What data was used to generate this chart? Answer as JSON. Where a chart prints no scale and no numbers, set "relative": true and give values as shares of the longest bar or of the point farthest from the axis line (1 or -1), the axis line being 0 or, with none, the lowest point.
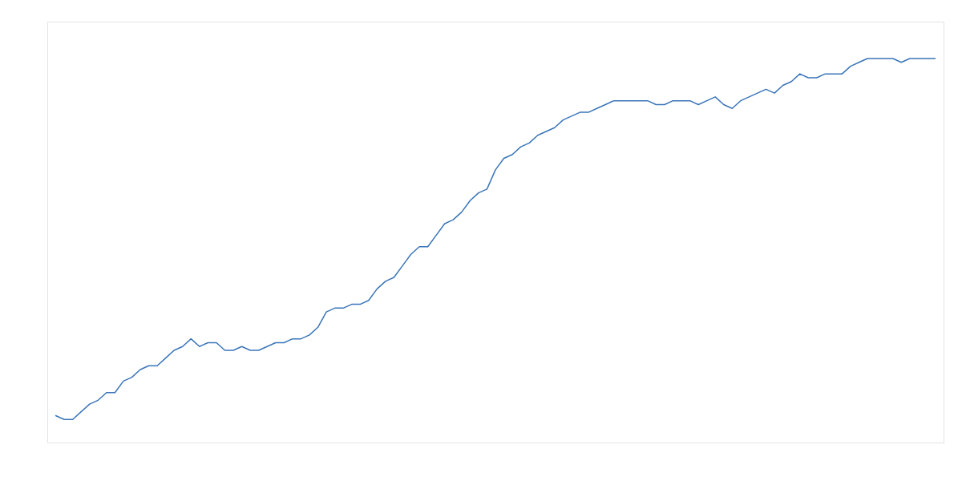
{
  "chart_data": {
    "type": "line",
    "relative": true,
    "color": "#3a75b8",
    "categories": [
      null,
      null,
      null,
      null,
      null,
      null,
      null,
      null,
      null,
      null,
      null,
      null,
      null,
      null,
      null,
      null,
      null,
      null,
      null,
      null,
      null,
      null,
      null,
      null,
      null,
      null,
      null,
      null,
      null,
      null,
      null,
      null,
      null,
      null,
      null,
      null,
      null,
      null,
      null,
      null,
      null,
      null,
      null,
      null,
      null,
      null,
      null,
      null,
      null,
      null,
      null,
      null,
      null,
      null,
      null,
      null,
      null,
      null,
      null,
      null,
      null,
      null,
      null,
      null,
      null,
      null,
      null,
      null,
      null,
      null,
      null,
      null,
      null,
      null,
      null,
      null,
      null,
      null,
      null,
      null,
      null,
      null,
      null,
      null,
      null,
      null,
      null,
      null,
      null,
      null,
      null,
      null,
      null,
      null,
      null,
      null,
      null,
      null,
      null,
      null,
      null,
      null,
      null,
      null,
      null
    ],
    "values": [
      0.07,
      0.06,
      0.06,
      0.08,
      0.1,
      0.11,
      0.13,
      0.13,
      0.16,
      0.17,
      0.19,
      0.2,
      0.2,
      0.22,
      0.24,
      0.25,
      0.27,
      0.25,
      0.26,
      0.26,
      0.24,
      0.24,
      0.25,
      0.24,
      0.24,
      0.25,
      0.26,
      0.26,
      0.27,
      0.27,
      0.28,
      0.3,
      0.34,
      0.35,
      0.35,
      0.36,
      0.36,
      0.37,
      0.4,
      0.42,
      0.43,
      0.46,
      0.49,
      0.51,
      0.51,
      0.54,
      0.57,
      0.58,
      0.6,
      0.63,
      0.65,
      0.66,
      0.71,
      0.74,
      0.75,
      0.77,
      0.78,
      0.8,
      0.81,
      0.82,
      0.84,
      0.85,
      0.86,
      0.86,
      0.87,
      0.88,
      0.89,
      0.89,
      0.89,
      0.89,
      0.89,
      0.88,
      0.88,
      0.89,
      0.89,
      0.89,
      0.88,
      0.89,
      0.9,
      0.88,
      0.87,
      0.89,
      0.9,
      0.91,
      0.92,
      0.91,
      0.93,
      0.94,
      0.96,
      0.95,
      0.95,
      0.96,
      0.96,
      0.96,
      0.98,
      0.99,
      1.0,
      1.0,
      1.0,
      1.0,
      0.99,
      1.0,
      1.0,
      1.0,
      1.0
    ]
  }
}
